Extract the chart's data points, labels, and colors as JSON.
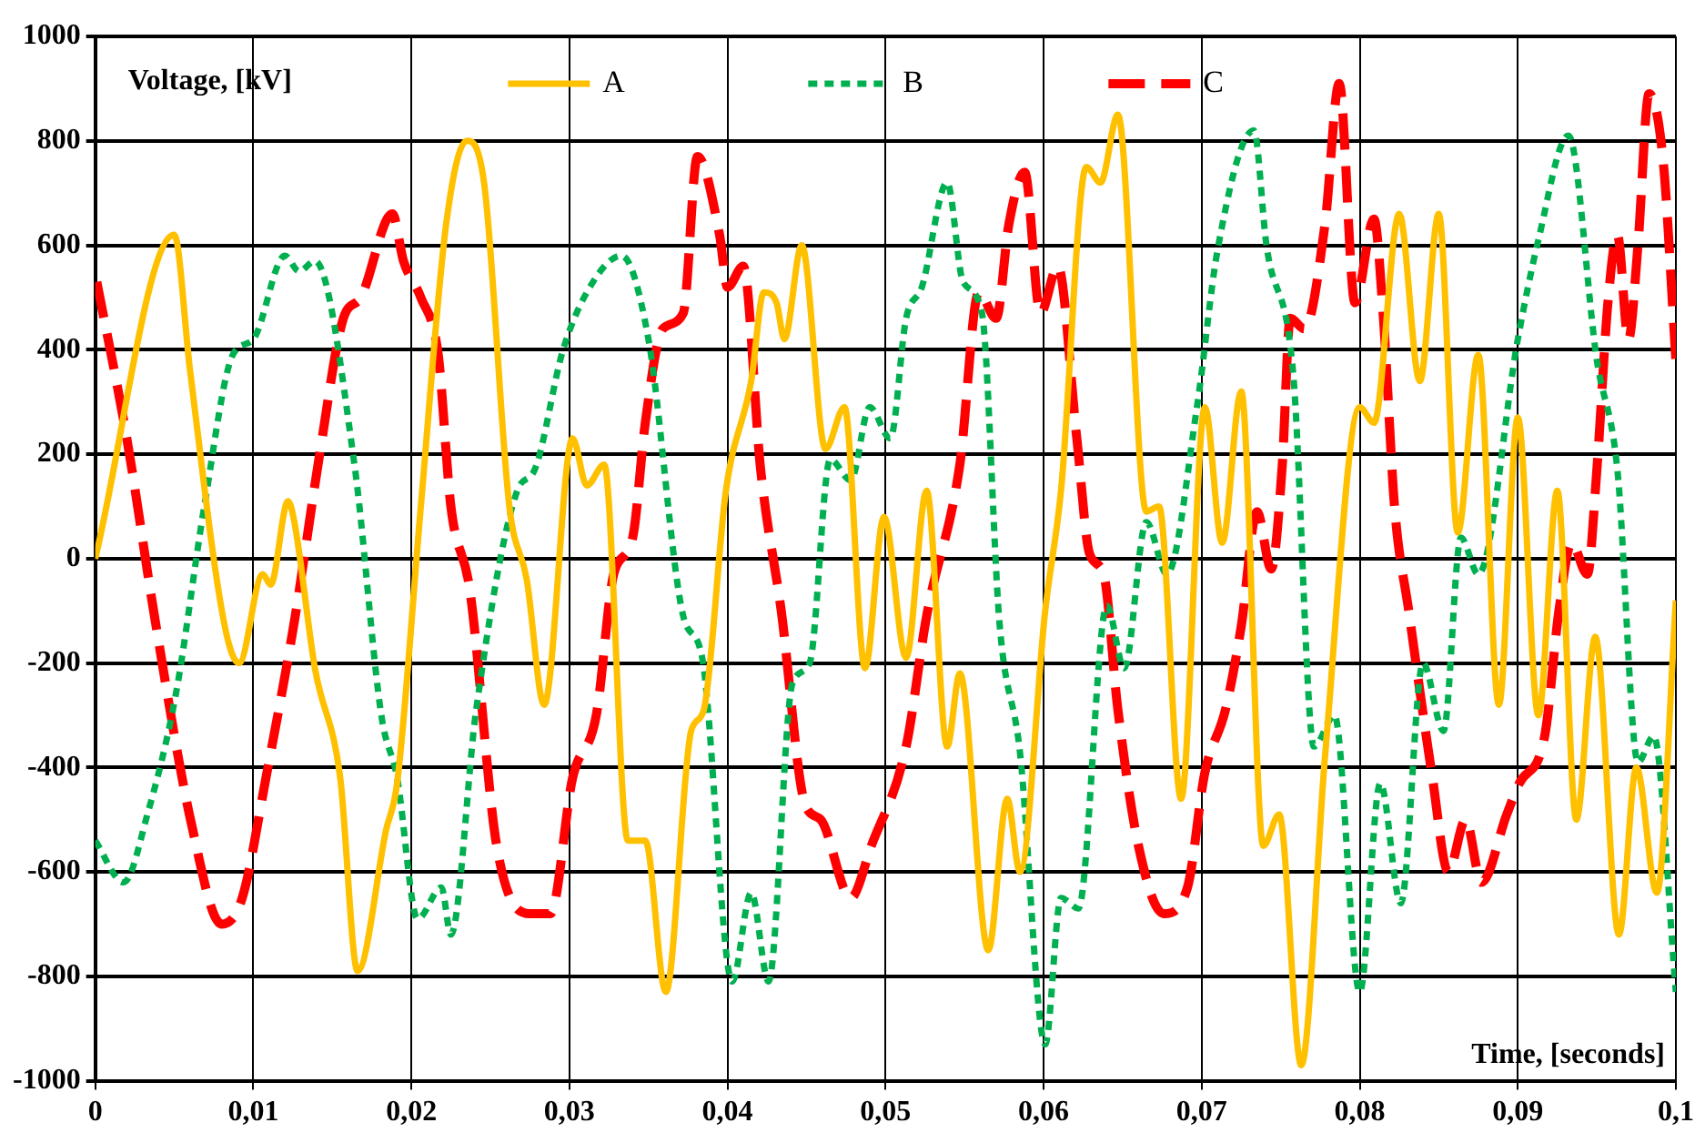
{
  "chart_data": {
    "type": "line",
    "xlabel": "Time, [seconds]",
    "ylabel": "Voltage, [kV]",
    "xlim": [
      0,
      0.1
    ],
    "xticks": [
      0,
      {
        "value": 0.01,
        "label": "0,01"
      },
      {
        "value": 0.02,
        "label": "0,02"
      },
      {
        "value": 0.03,
        "label": "0,03"
      },
      {
        "value": 0.04,
        "label": "0,04"
      },
      {
        "value": 0.05,
        "label": "0,05"
      },
      {
        "value": 0.06,
        "label": "0,06"
      },
      {
        "value": 0.07,
        "label": "0,07"
      },
      {
        "value": 0.08,
        "label": "0,08"
      },
      {
        "value": 0.09,
        "label": "0,09"
      },
      {
        "value": 0.1,
        "label": "0,1"
      }
    ],
    "ylim": [
      -1000,
      1000
    ],
    "yticks": [
      -1000,
      -800,
      -600,
      -400,
      -200,
      0,
      200,
      400,
      600,
      800,
      1000
    ],
    "grid": true,
    "legend": "top",
    "marker": "none",
    "series": [
      {
        "name": "A",
        "color": "#ffc000",
        "line_style": "solid",
        "x": [
          0,
          0.005,
          0.006,
          0.0082,
          0.0091,
          0.0106,
          0.0111,
          0.0122,
          0.0126,
          0.0139,
          0.0155,
          0.0166,
          0.0184,
          0.0191,
          0.0206,
          0.0222,
          0.0235,
          0.0246,
          0.0262,
          0.0273,
          0.0284,
          0.0302,
          0.0311,
          0.0322,
          0.0337,
          0.0348,
          0.0361,
          0.0377,
          0.0385,
          0.0399,
          0.0415,
          0.0423,
          0.0431,
          0.0436,
          0.0447,
          0.0462,
          0.0474,
          0.0487,
          0.0499,
          0.0513,
          0.0526,
          0.0539,
          0.0547,
          0.0565,
          0.0577,
          0.0585,
          0.0601,
          0.0611,
          0.0627,
          0.0636,
          0.0647,
          0.0665,
          0.0673,
          0.0687,
          0.0702,
          0.0713,
          0.0725,
          0.0739,
          0.0749,
          0.0763,
          0.0778,
          0.08,
          0.0809,
          0.0825,
          0.0838,
          0.085,
          0.0862,
          0.0875,
          0.0888,
          0.09,
          0.0913,
          0.0925,
          0.0937,
          0.0949,
          0.0964,
          0.0975,
          0.0988,
          0.1
        ],
        "values": [
          0,
          620,
          360,
          -130,
          -200,
          -30,
          -50,
          110,
          70,
          -210,
          -420,
          -790,
          -520,
          -430,
          100,
          640,
          800,
          720,
          100,
          -40,
          -280,
          230,
          140,
          180,
          -540,
          -540,
          -830,
          -330,
          -290,
          130,
          340,
          510,
          490,
          420,
          600,
          210,
          290,
          -210,
          80,
          -190,
          130,
          -360,
          -220,
          -750,
          -460,
          -600,
          -100,
          130,
          750,
          720,
          850,
          90,
          100,
          -460,
          290,
          30,
          320,
          -550,
          -490,
          -970,
          -380,
          290,
          260,
          660,
          340,
          660,
          50,
          390,
          -280,
          270,
          -300,
          130,
          -500,
          -150,
          -720,
          -400,
          -640,
          -80
        ]
      },
      {
        "name": "B",
        "color": "#00b050",
        "line_style": "dotted",
        "x": [
          0,
          0.0018,
          0.0033,
          0.0051,
          0.0069,
          0.0087,
          0.01,
          0.012,
          0.0129,
          0.0139,
          0.0164,
          0.0181,
          0.0191,
          0.0204,
          0.0219,
          0.0225,
          0.0241,
          0.0267,
          0.0278,
          0.0296,
          0.0315,
          0.0333,
          0.035,
          0.0372,
          0.0384,
          0.0403,
          0.0415,
          0.0426,
          0.0441,
          0.0452,
          0.0465,
          0.0478,
          0.049,
          0.0503,
          0.0513,
          0.0523,
          0.0539,
          0.0549,
          0.0561,
          0.0572,
          0.0585,
          0.0601,
          0.0611,
          0.0622,
          0.064,
          0.0651,
          0.0665,
          0.0678,
          0.0697,
          0.071,
          0.0733,
          0.0741,
          0.0758,
          0.0771,
          0.0784,
          0.08,
          0.0813,
          0.0826,
          0.084,
          0.0853,
          0.0864,
          0.0875,
          0.09,
          0.0913,
          0.0932,
          0.095,
          0.0963,
          0.0976,
          0.0986,
          0.1
        ],
        "values": [
          -540,
          -620,
          -490,
          -260,
          100,
          390,
          420,
          580,
          550,
          570,
          180,
          -300,
          -420,
          -690,
          -630,
          -720,
          -290,
          130,
          170,
          400,
          530,
          580,
          420,
          -110,
          -190,
          -810,
          -640,
          -810,
          -240,
          -200,
          190,
          150,
          290,
          230,
          460,
          520,
          720,
          530,
          470,
          -120,
          -370,
          -930,
          -650,
          -670,
          -90,
          -210,
          70,
          -30,
          290,
          590,
          820,
          600,
          350,
          -360,
          -300,
          -830,
          -430,
          -660,
          -200,
          -330,
          40,
          -30,
          420,
          610,
          810,
          380,
          170,
          -390,
          -340,
          -830
        ]
      },
      {
        "name": "C",
        "color": "#ff0000",
        "line_style": "dashed",
        "x": [
          0.0001,
          0.002,
          0.0038,
          0.0061,
          0.008,
          0.0093,
          0.0108,
          0.0126,
          0.0142,
          0.0157,
          0.0168,
          0.0188,
          0.0195,
          0.0206,
          0.0217,
          0.0225,
          0.0237,
          0.0254,
          0.0275,
          0.0288,
          0.0302,
          0.0317,
          0.0328,
          0.034,
          0.0348,
          0.0359,
          0.0372,
          0.0381,
          0.0395,
          0.04,
          0.041,
          0.0421,
          0.0434,
          0.0449,
          0.0459,
          0.0478,
          0.0491,
          0.0513,
          0.0526,
          0.0547,
          0.0559,
          0.057,
          0.0578,
          0.0588,
          0.0598,
          0.0609,
          0.0621,
          0.0629,
          0.0638,
          0.0647,
          0.066,
          0.0676,
          0.0691,
          0.0702,
          0.0715,
          0.0725,
          0.0735,
          0.0744,
          0.0751,
          0.0756,
          0.0765,
          0.0778,
          0.0787,
          0.0797,
          0.0809,
          0.0815,
          0.0822,
          0.0831,
          0.0846,
          0.0856,
          0.0867,
          0.0877,
          0.0893,
          0.0901,
          0.0917,
          0.0926,
          0.0934,
          0.0944,
          0.095,
          0.0957,
          0.0963,
          0.097,
          0.0976,
          0.0983,
          0.0992,
          0.0999,
          0.1
        ],
        "values": [
          530,
          230,
          -120,
          -510,
          -700,
          -650,
          -420,
          -120,
          200,
          460,
          500,
          660,
          570,
          500,
          390,
          100,
          -60,
          -550,
          -680,
          -680,
          -420,
          -300,
          -30,
          40,
          260,
          440,
          470,
          770,
          620,
          520,
          560,
          170,
          -100,
          -470,
          -500,
          -650,
          -550,
          -360,
          -110,
          180,
          510,
          460,
          640,
          740,
          470,
          560,
          230,
          10,
          -30,
          -290,
          -550,
          -680,
          -630,
          -410,
          -290,
          -130,
          90,
          -20,
          180,
          460,
          440,
          640,
          910,
          490,
          650,
          460,
          100,
          -100,
          -420,
          -600,
          -500,
          -620,
          -490,
          -430,
          -340,
          -100,
          30,
          -30,
          170,
          490,
          620,
          420,
          600,
          890,
          760,
          430,
          380
        ]
      }
    ]
  }
}
